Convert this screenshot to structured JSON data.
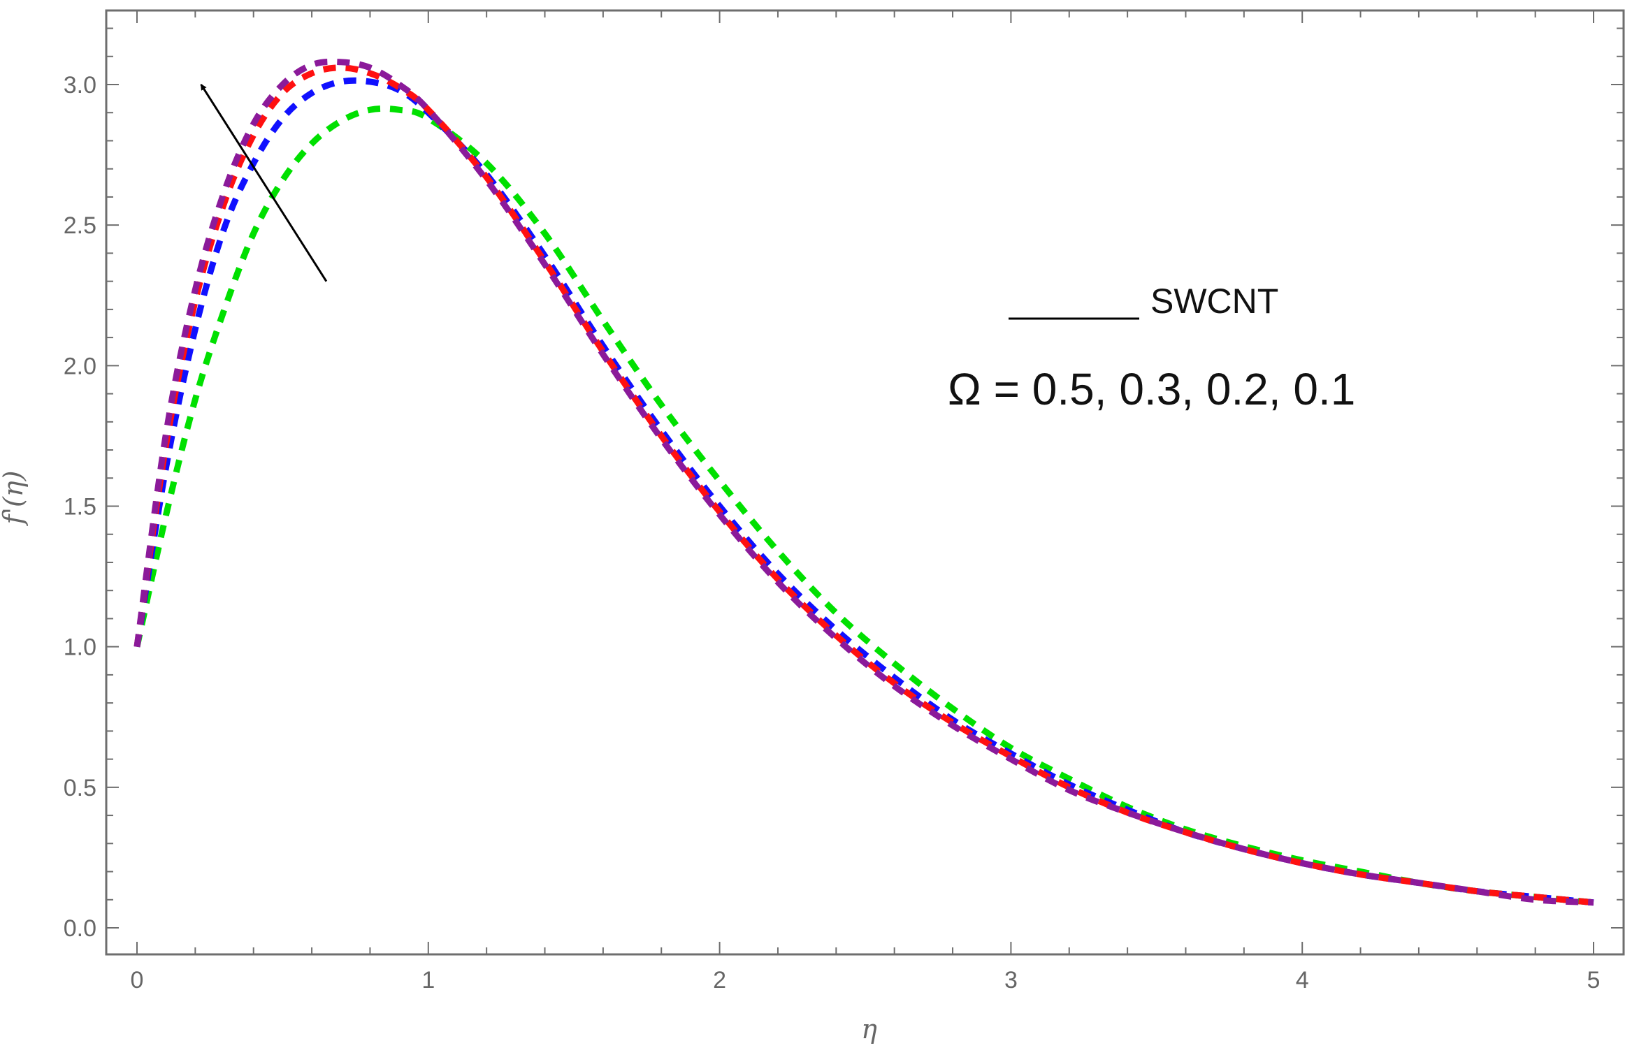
{
  "chart_data": {
    "type": "line",
    "title": "",
    "xlabel": "η",
    "ylabel": "f'(η)",
    "xlim": [
      0,
      5
    ],
    "ylim": [
      0,
      3.25
    ],
    "xticks": [
      0,
      1,
      2,
      3,
      4,
      5
    ],
    "yticks": [
      0.0,
      0.5,
      1.0,
      1.5,
      2.0,
      2.5,
      3.0
    ],
    "xtick_labels": [
      "0",
      "1",
      "2",
      "3",
      "4",
      "5"
    ],
    "ytick_labels": [
      "0.0",
      "0.5",
      "1.0",
      "1.5",
      "2.0",
      "2.5",
      "3.0"
    ],
    "grid": false,
    "line_style": "dashed",
    "series": [
      {
        "color": "#00e000",
        "x": [
          0,
          0.1,
          0.2,
          0.3,
          0.4,
          0.5,
          0.6,
          0.7,
          0.8,
          0.9,
          1.0,
          1.2,
          1.4,
          1.6,
          1.8,
          2.0,
          2.2,
          2.4,
          2.6,
          2.8,
          3.0,
          3.2,
          3.4,
          3.6,
          3.8,
          4.0,
          4.2,
          4.4,
          4.6,
          4.8,
          5.0
        ],
        "y": [
          1.0,
          1.47,
          1.88,
          2.2,
          2.47,
          2.66,
          2.79,
          2.87,
          2.91,
          2.91,
          2.88,
          2.72,
          2.47,
          2.16,
          1.86,
          1.59,
          1.34,
          1.12,
          0.94,
          0.78,
          0.64,
          0.53,
          0.43,
          0.35,
          0.29,
          0.24,
          0.2,
          0.16,
          0.13,
          0.11,
          0.09
        ]
      },
      {
        "color": "#1010ff",
        "x": [
          0,
          0.1,
          0.2,
          0.3,
          0.4,
          0.5,
          0.6,
          0.7,
          0.8,
          0.9,
          1.0,
          1.2,
          1.4,
          1.6,
          1.8,
          2.0,
          2.2,
          2.4,
          2.6,
          2.8,
          3.0,
          3.2,
          3.4,
          3.6,
          3.8,
          4.0,
          4.2,
          4.4,
          4.6,
          4.8,
          5.0
        ],
        "y": [
          1.0,
          1.64,
          2.13,
          2.49,
          2.72,
          2.88,
          2.97,
          3.01,
          3.01,
          2.98,
          2.9,
          2.68,
          2.39,
          2.07,
          1.77,
          1.5,
          1.26,
          1.06,
          0.89,
          0.74,
          0.62,
          0.51,
          0.42,
          0.34,
          0.28,
          0.23,
          0.19,
          0.16,
          0.13,
          0.11,
          0.09
        ]
      },
      {
        "color": "#ff1010",
        "x": [
          0,
          0.1,
          0.2,
          0.3,
          0.4,
          0.5,
          0.6,
          0.7,
          0.8,
          0.9,
          1.0,
          1.2,
          1.4,
          1.6,
          1.8,
          2.0,
          2.2,
          2.4,
          2.6,
          2.8,
          3.0,
          3.2,
          3.4,
          3.6,
          3.8,
          4.0,
          4.2,
          4.4,
          4.6,
          4.8,
          5.0
        ],
        "y": [
          1.0,
          1.72,
          2.23,
          2.58,
          2.82,
          2.97,
          3.04,
          3.06,
          3.04,
          2.99,
          2.91,
          2.67,
          2.37,
          2.05,
          1.75,
          1.48,
          1.24,
          1.04,
          0.87,
          0.73,
          0.61,
          0.5,
          0.41,
          0.34,
          0.28,
          0.23,
          0.19,
          0.16,
          0.13,
          0.11,
          0.09
        ]
      },
      {
        "color": "#8b1a9a",
        "x": [
          0,
          0.1,
          0.2,
          0.3,
          0.4,
          0.5,
          0.6,
          0.7,
          0.8,
          0.9,
          1.0,
          1.2,
          1.4,
          1.6,
          1.8,
          2.0,
          2.2,
          2.4,
          2.6,
          2.8,
          3.0,
          3.2,
          3.4,
          3.6,
          3.8,
          4.0,
          4.2,
          4.4,
          4.6,
          4.8,
          5.0
        ],
        "y": [
          1.0,
          1.76,
          2.27,
          2.62,
          2.86,
          3.0,
          3.07,
          3.08,
          3.06,
          3.0,
          2.91,
          2.66,
          2.36,
          2.04,
          1.74,
          1.47,
          1.23,
          1.03,
          0.86,
          0.72,
          0.6,
          0.49,
          0.41,
          0.34,
          0.28,
          0.23,
          0.19,
          0.16,
          0.13,
          0.1,
          0.09
        ]
      }
    ],
    "annotations": {
      "legend_text": "SWCNT",
      "legend_line_color": "#000000",
      "parameter_text": "Ω = 0.5, 0.3, 0.2, 0.1",
      "arrow": {
        "from": [
          0.65,
          2.3
        ],
        "to": [
          0.22,
          3.0
        ],
        "color": "#000000"
      }
    }
  }
}
